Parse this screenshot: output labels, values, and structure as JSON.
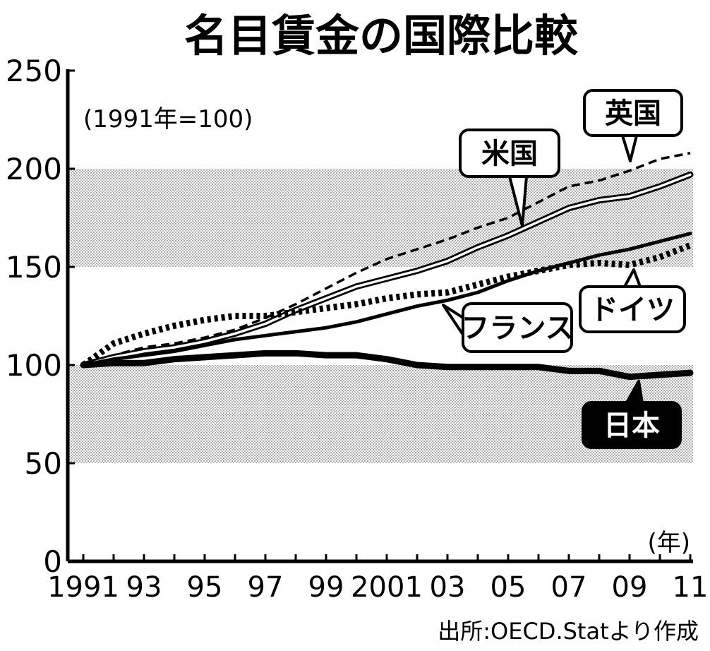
{
  "chart_data": {
    "type": "line",
    "title": "名目賃金の国際比較",
    "note": "(1991年=100)",
    "xunit": "(年)",
    "source": "出所:OECD.Statより作成",
    "ylim": [
      0,
      250
    ],
    "yticks": [
      0,
      50,
      100,
      150,
      200,
      250
    ],
    "xlim": [
      1991,
      2011
    ],
    "xticks": [
      {
        "x": 1991,
        "label": "1991"
      },
      {
        "x": 1993,
        "label": "93"
      },
      {
        "x": 1995,
        "label": "95"
      },
      {
        "x": 1997,
        "label": "97"
      },
      {
        "x": 1999,
        "label": "99"
      },
      {
        "x": 2001,
        "label": "2001"
      },
      {
        "x": 2003,
        "label": "03"
      },
      {
        "x": 2005,
        "label": "05"
      },
      {
        "x": 2007,
        "label": "07"
      },
      {
        "x": 2009,
        "label": "09"
      },
      {
        "x": 2011,
        "label": "11"
      }
    ],
    "shaded_bands": [
      [
        50,
        100
      ],
      [
        150,
        200
      ]
    ],
    "x": [
      1991,
      1992,
      1993,
      1994,
      1995,
      1996,
      1997,
      1998,
      1999,
      2000,
      2001,
      2002,
      2003,
      2004,
      2005,
      2006,
      2007,
      2008,
      2009,
      2010,
      2011
    ],
    "series": [
      {
        "name": "英国",
        "style": "dashed",
        "color": "#000000",
        "values": [
          100,
          105,
          109,
          111,
          114,
          118,
          124,
          131,
          139,
          147,
          154,
          159,
          164,
          170,
          175,
          183,
          191,
          194,
          199,
          205,
          208
        ]
      },
      {
        "name": "米国",
        "style": "double",
        "color": "#000000",
        "values": [
          100,
          104,
          107,
          109,
          112,
          116,
          121,
          128,
          134,
          140,
          144,
          148,
          153,
          160,
          166,
          173,
          180,
          184,
          186,
          191,
          197
        ]
      },
      {
        "name": "ドイツ",
        "style": "dotted",
        "color": "#000000",
        "values": [
          100,
          111,
          116,
          120,
          123,
          125,
          125,
          127,
          129,
          131,
          134,
          136,
          137,
          141,
          145,
          148,
          151,
          152,
          151,
          155,
          161
        ]
      },
      {
        "name": "フランス",
        "style": "solid",
        "color": "#000000",
        "values": [
          100,
          103,
          105,
          107,
          110,
          113,
          115,
          117,
          119,
          122,
          126,
          130,
          133,
          137,
          143,
          148,
          152,
          156,
          159,
          163,
          167
        ]
      },
      {
        "name": "日本",
        "style": "thick",
        "color": "#000000",
        "values": [
          100,
          101,
          101,
          103,
          104,
          105,
          106,
          106,
          105,
          105,
          103,
          100,
          99,
          99,
          99,
          99,
          97,
          97,
          94,
          95,
          96
        ]
      }
    ]
  }
}
